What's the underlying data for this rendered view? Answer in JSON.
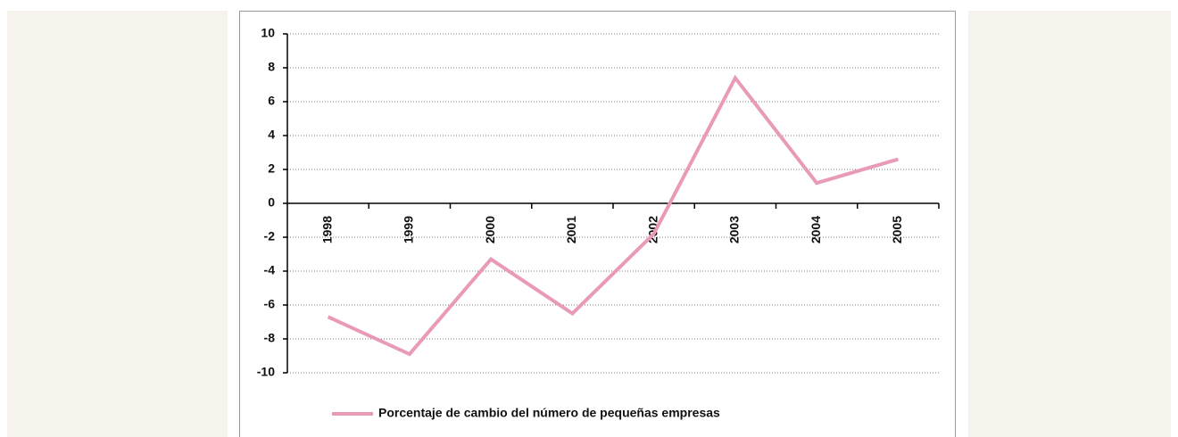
{
  "chart_data": {
    "type": "line",
    "categories": [
      "1998",
      "1999",
      "2000",
      "2001",
      "2002",
      "2003",
      "2004",
      "2005"
    ],
    "series": [
      {
        "name": "Porcentaje de cambio del número de pequeñas empresas",
        "color": "#e89ab8",
        "values": [
          -6.7,
          -8.9,
          -3.3,
          -6.5,
          -1.8,
          7.4,
          1.2,
          2.6
        ]
      }
    ],
    "ylim": [
      -10,
      10
    ],
    "yticks": [
      -10,
      -8,
      -6,
      -4,
      -2,
      0,
      2,
      4,
      6,
      8,
      10
    ],
    "grid": true,
    "legend": "bottom"
  }
}
